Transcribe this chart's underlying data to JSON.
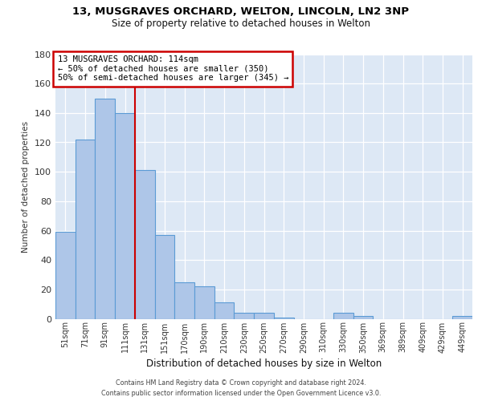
{
  "title": "13, MUSGRAVES ORCHARD, WELTON, LINCOLN, LN2 3NP",
  "subtitle": "Size of property relative to detached houses in Welton",
  "xlabel": "Distribution of detached houses by size in Welton",
  "ylabel": "Number of detached properties",
  "bar_labels": [
    "51sqm",
    "71sqm",
    "91sqm",
    "111sqm",
    "131sqm",
    "151sqm",
    "170sqm",
    "190sqm",
    "210sqm",
    "230sqm",
    "250sqm",
    "270sqm",
    "290sqm",
    "310sqm",
    "330sqm",
    "350sqm",
    "369sqm",
    "389sqm",
    "409sqm",
    "429sqm",
    "449sqm"
  ],
  "bar_values": [
    59,
    122,
    150,
    140,
    101,
    57,
    25,
    22,
    11,
    4,
    4,
    1,
    0,
    0,
    4,
    2,
    0,
    0,
    0,
    0,
    2
  ],
  "bar_color": "#aec6e8",
  "bar_edge_color": "#5b9bd5",
  "background_color": "#dde8f5",
  "grid_color": "#ffffff",
  "vline_color": "#cc0000",
  "annotation_title": "13 MUSGRAVES ORCHARD: 114sqm",
  "annotation_line1": "← 50% of detached houses are smaller (350)",
  "annotation_line2": "50% of semi-detached houses are larger (345) →",
  "annotation_box_color": "#ffffff",
  "annotation_border_color": "#cc0000",
  "ylim": [
    0,
    180
  ],
  "yticks": [
    0,
    20,
    40,
    60,
    80,
    100,
    120,
    140,
    160,
    180
  ],
  "footer1": "Contains HM Land Registry data © Crown copyright and database right 2024.",
  "footer2": "Contains public sector information licensed under the Open Government Licence v3.0."
}
